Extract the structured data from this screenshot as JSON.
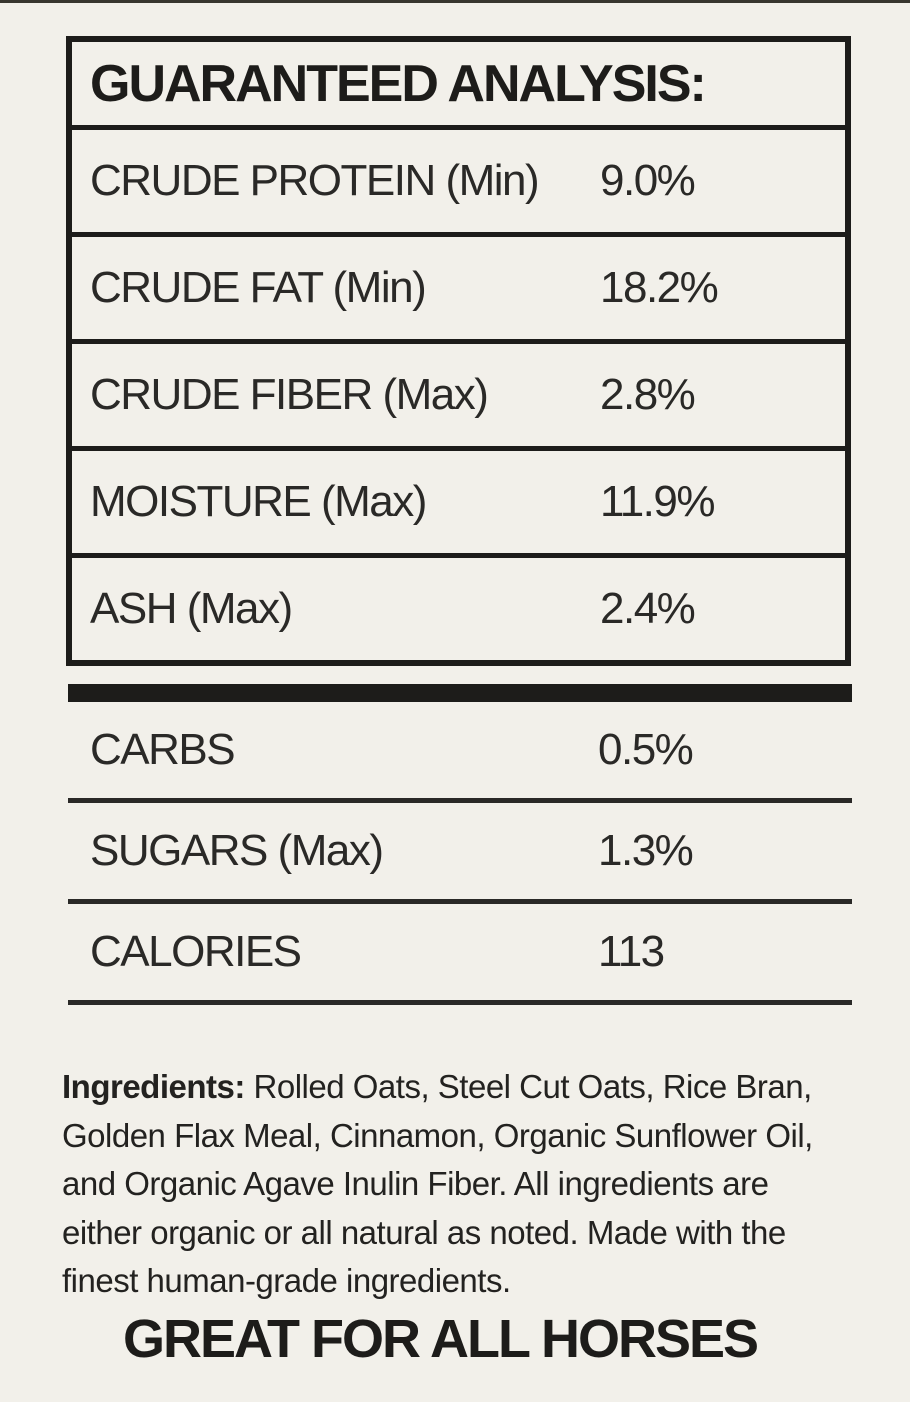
{
  "colors": {
    "background": "#f2f0ea",
    "ink": "#1d1c1a"
  },
  "analysis": {
    "title": "GUARANTEED ANALYSIS:",
    "rows": [
      {
        "label": "CRUDE PROTEIN (Min)",
        "value": "9.0%"
      },
      {
        "label": "CRUDE FAT (Min)",
        "value": "18.2%"
      },
      {
        "label": "CRUDE FIBER (Max)",
        "value": "2.8%"
      },
      {
        "label": "MOISTURE (Max)",
        "value": "11.9%"
      },
      {
        "label": "ASH (Max)",
        "value": "2.4%"
      }
    ]
  },
  "supplemental": {
    "rows": [
      {
        "label": "CARBS",
        "value": "0.5%"
      },
      {
        "label": "SUGARS (Max)",
        "value": "1.3%"
      },
      {
        "label": "CALORIES",
        "value": "113"
      }
    ]
  },
  "ingredients": {
    "heading": "Ingredients:",
    "body": "Rolled Oats, Steel Cut Oats, Rice Bran, Golden Flax Meal, Cinnamon, Organic Sunflower Oil, and Organic Agave Inulin Fiber. All ingredients are either organic or all natural as noted. Made with the finest human-grade ingredients."
  },
  "footer": {
    "tagline": "GREAT FOR ALL HORSES"
  }
}
